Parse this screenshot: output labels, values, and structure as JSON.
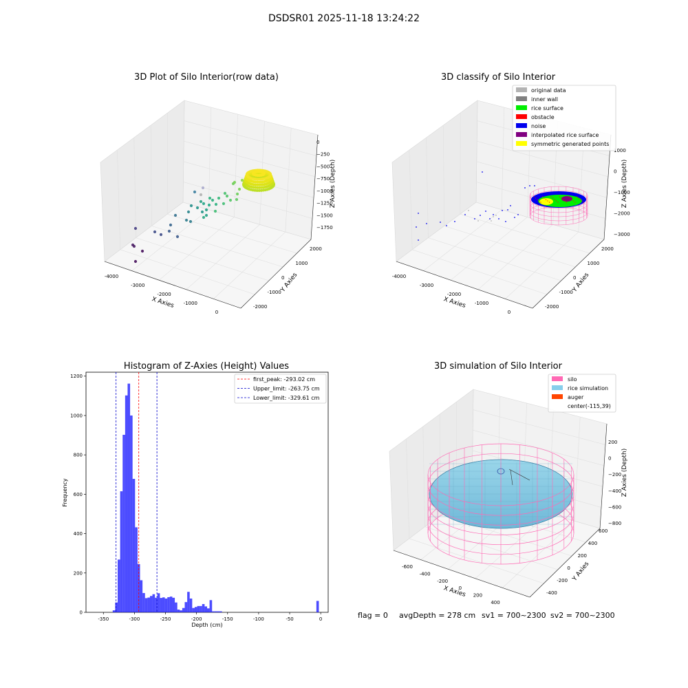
{
  "figure": {
    "suptitle": "DSDSR01 2025-11-18 13:24:22",
    "bottom": {
      "flag": "flag = 0",
      "avg": "avgDepth = 278 cm",
      "sv1": "sv1 = 700~2300",
      "sv2": "sv2 = 700~2300"
    }
  },
  "chart_data": [
    {
      "type": "scatter",
      "title": "3D Plot of Silo Interior(row data)",
      "xlabel": "X Axies",
      "ylabel": "Y Axies",
      "zlabel": "Z Axies (Depth)",
      "x_ticks": [
        "-4000",
        "-3000",
        "-2000",
        "-1000",
        "0"
      ],
      "y_ticks": [
        "-2000",
        "-1000",
        "0",
        "1000",
        "2000"
      ],
      "z_ticks": [
        "0",
        "−250",
        "−500",
        "−750",
        "−1000",
        "−1250",
        "−1500",
        "−1750"
      ],
      "colormap": "viridis",
      "note_points": "sparse scattered points toward -X, dense ring cluster near X≈0,Y≈0,Z≈-250 to -500"
    },
    {
      "type": "scatter",
      "title": "3D classify of Silo Interior",
      "xlabel": "X Axies",
      "ylabel": "Y Axies",
      "zlabel": "Z Axies (Depth)",
      "x_ticks": [
        "-4000",
        "-3000",
        "-2000",
        "-1000",
        "0"
      ],
      "y_ticks": [
        "-2000",
        "-1000",
        "0",
        "1000",
        "2000"
      ],
      "z_ticks": [
        "1000",
        "0",
        "−1000",
        "−2000",
        "−3000"
      ],
      "legend_position": "top-right",
      "legend": [
        {
          "label": "original data",
          "color": "#b3b3b3"
        },
        {
          "label": "inner wall",
          "color": "#808080"
        },
        {
          "label": "rice surface",
          "color": "#00ee00"
        },
        {
          "label": "obstacle",
          "color": "#ff0000"
        },
        {
          "label": "noise",
          "color": "#0000ee"
        },
        {
          "label": "interpolated rice surface",
          "color": "#800080"
        },
        {
          "label": "symmetric generated points",
          "color": "#ffff00"
        }
      ]
    },
    {
      "type": "bar",
      "title": "Histogram of Z-Axies (Height) Values",
      "xlabel": "Depth (cm)",
      "ylabel": "Frequency",
      "xlim": [
        -378,
        12
      ],
      "ylim": [
        0,
        1220
      ],
      "x_ticks": [
        "-350",
        "-300",
        "-250",
        "-200",
        "-150",
        "-100",
        "-50",
        "0"
      ],
      "y_ticks": [
        "0",
        "200",
        "400",
        "600",
        "800",
        "1000",
        "1200"
      ],
      "bar_color": "#0000ff",
      "bins": [
        {
          "from": -335,
          "to": -331,
          "count": 10
        },
        {
          "from": -331,
          "to": -327,
          "count": 50
        },
        {
          "from": -327,
          "to": -323,
          "count": 268
        },
        {
          "from": -323,
          "to": -319,
          "count": 615
        },
        {
          "from": -319,
          "to": -315,
          "count": 902
        },
        {
          "from": -315,
          "to": -311,
          "count": 1102
        },
        {
          "from": -311,
          "to": -307,
          "count": 1162
        },
        {
          "from": -307,
          "to": -303,
          "count": 1000
        },
        {
          "from": -303,
          "to": -299,
          "count": 678
        },
        {
          "from": -299,
          "to": -295,
          "count": 432
        },
        {
          "from": -295,
          "to": -291,
          "count": 245
        },
        {
          "from": -291,
          "to": -287,
          "count": 163
        },
        {
          "from": -287,
          "to": -283,
          "count": 98
        },
        {
          "from": -283,
          "to": -279,
          "count": 72
        },
        {
          "from": -279,
          "to": -275,
          "count": 75
        },
        {
          "from": -275,
          "to": -271,
          "count": 83
        },
        {
          "from": -271,
          "to": -267,
          "count": 92
        },
        {
          "from": -267,
          "to": -263,
          "count": 74
        },
        {
          "from": -263,
          "to": -259,
          "count": 97
        },
        {
          "from": -259,
          "to": -255,
          "count": 73
        },
        {
          "from": -255,
          "to": -251,
          "count": 76
        },
        {
          "from": -251,
          "to": -247,
          "count": 70
        },
        {
          "from": -247,
          "to": -243,
          "count": 77
        },
        {
          "from": -243,
          "to": -239,
          "count": 80
        },
        {
          "from": -239,
          "to": -235,
          "count": 74
        },
        {
          "from": -235,
          "to": -231,
          "count": 50
        },
        {
          "from": -231,
          "to": -227,
          "count": 14
        },
        {
          "from": -227,
          "to": -223,
          "count": 10
        },
        {
          "from": -223,
          "to": -219,
          "count": 22
        },
        {
          "from": -219,
          "to": -215,
          "count": 52
        },
        {
          "from": -215,
          "to": -211,
          "count": 104
        },
        {
          "from": -211,
          "to": -207,
          "count": 70
        },
        {
          "from": -207,
          "to": -203,
          "count": 22
        },
        {
          "from": -203,
          "to": -199,
          "count": 27
        },
        {
          "from": -199,
          "to": -195,
          "count": 32
        },
        {
          "from": -195,
          "to": -191,
          "count": 32
        },
        {
          "from": -191,
          "to": -187,
          "count": 42
        },
        {
          "from": -187,
          "to": -183,
          "count": 30
        },
        {
          "from": -183,
          "to": -179,
          "count": 20
        },
        {
          "from": -179,
          "to": -175,
          "count": 62
        },
        {
          "from": -175,
          "to": -171,
          "count": 5
        },
        {
          "from": -171,
          "to": -167,
          "count": 5
        },
        {
          "from": -167,
          "to": -163,
          "count": 5
        },
        {
          "from": -163,
          "to": -159,
          "count": 5
        },
        {
          "from": -7,
          "to": -3,
          "count": 58
        }
      ],
      "ref_lines": [
        {
          "label": "first_peak: -293.02 cm",
          "value": -293.02,
          "color": "#ff0000"
        },
        {
          "label": "Upper_limit: -263.75 cm",
          "value": -263.75,
          "color": "#0000cc"
        },
        {
          "label": "Lower_limit: -329.61 cm",
          "value": -329.61,
          "color": "#0000cc"
        }
      ],
      "legend_position": "top-right"
    },
    {
      "type": "scatter",
      "title": "3D simulation of Silo Interior",
      "xlabel": "X Axies",
      "ylabel": "Y Axies",
      "zlabel": "Z Axies (Depth)",
      "x_ticks": [
        "-600",
        "-400",
        "-200",
        "0",
        "200",
        "400"
      ],
      "y_ticks": [
        "-400",
        "-200",
        "0",
        "200",
        "400",
        "600"
      ],
      "z_ticks": [
        "200",
        "0",
        "−200",
        "−400",
        "−600",
        "−800"
      ],
      "legend_position": "top-right",
      "legend": [
        {
          "label": "silo",
          "color": "#ff69b4"
        },
        {
          "label": "rice simulation",
          "color": "#87ceeb"
        },
        {
          "label": "auger",
          "color": "#ff4500"
        },
        {
          "label": "center(-115,39)",
          "color": ""
        }
      ]
    }
  ]
}
